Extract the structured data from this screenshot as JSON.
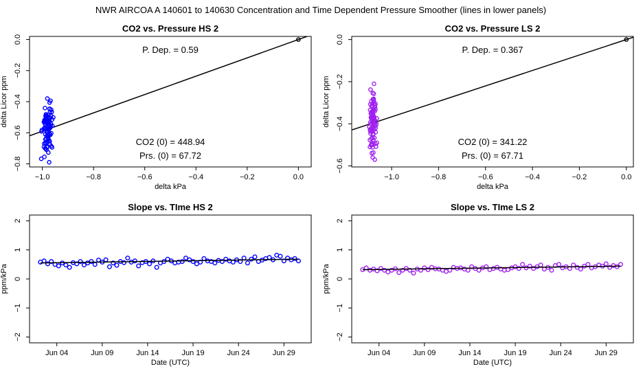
{
  "figure_title": "NWR   AIRCOA A   140601 to 140630   Concentration and Time Dependent Pressure Smoother (lines in lower panels)",
  "colors": {
    "hs": "#0000ff",
    "ls": "#a020f0",
    "line": "#000000"
  },
  "chart_data": [
    {
      "id": "hs-scatter",
      "type": "scatter",
      "title": "CO2 vs. Pressure HS 2",
      "xlabel": "delta kPa",
      "ylabel": "delta Licor ppm",
      "xlim": [
        -1.05,
        0.05
      ],
      "ylim": [
        -0.82,
        0.02
      ],
      "xticks": [
        -1.0,
        -0.8,
        -0.6,
        -0.4,
        -0.2,
        0.0
      ],
      "xtick_labels": [
        "−1.0",
        "−0.8",
        "−0.6",
        "−0.4",
        "−0.2",
        "0.0"
      ],
      "yticks": [
        0.0,
        -0.2,
        -0.4,
        -0.6,
        -0.8
      ],
      "ytick_labels": [
        "0.0",
        "−0.2",
        "−0.4",
        "−0.6",
        "−0.8"
      ],
      "annotations": {
        "pdep": "P. Dep. =  0.59",
        "co2": "CO2 (0) =  448.94",
        "prs": "Prs. (0) =  67.72"
      },
      "fit_line": {
        "slope": 0.59,
        "intercept": 0.0
      },
      "ref_point": [
        0.0,
        0.0
      ],
      "cluster": {
        "x_center": -0.98,
        "x_spread": 0.028,
        "y_min": -0.79,
        "y_max": -0.38,
        "y_mean": -0.58,
        "n": 90
      }
    },
    {
      "id": "ls-scatter",
      "type": "scatter",
      "title": "CO2 vs. Pressure LS 2",
      "xlabel": "delta kPa",
      "ylabel": "delta Licor ppm",
      "xlim": [
        -1.17,
        0.03
      ],
      "ylim": [
        -0.605,
        0.015
      ],
      "xticks": [
        -1.0,
        -0.8,
        -0.6,
        -0.4,
        -0.2,
        0.0
      ],
      "xtick_labels": [
        "−1.0",
        "−0.8",
        "−0.6",
        "−0.4",
        "−0.2",
        "0.0"
      ],
      "yticks": [
        0.0,
        -0.2,
        -0.4,
        -0.6
      ],
      "ytick_labels": [
        "0.0",
        "−0.2",
        "−0.4",
        "−0.6"
      ],
      "annotations": {
        "pdep": "P. Dep. =  0.367",
        "co2": "CO2 (0) =  341.22",
        "prs": "Prs. (0) =  67.71"
      },
      "fit_line": {
        "slope": 0.367,
        "intercept": 0.0
      },
      "ref_point": [
        0.0,
        0.0
      ],
      "cluster": {
        "x_center": -1.08,
        "x_spread": 0.022,
        "y_min": -0.57,
        "y_max": -0.21,
        "y_mean": -0.39,
        "n": 90
      }
    },
    {
      "id": "hs-slope",
      "type": "scatter",
      "title": "Slope vs. TIme HS 2",
      "xlabel": "Date (UTC)",
      "ylabel": "ppm/kPa",
      "xlim": [
        0,
        31
      ],
      "ylim": [
        -2.2,
        2.2
      ],
      "xticks": [
        3,
        8,
        13,
        18,
        23,
        28
      ],
      "xtick_labels": [
        "Jun 04",
        "Jun 09",
        "Jun 14",
        "Jun 19",
        "Jun 24",
        "Jun 29"
      ],
      "yticks": [
        -2,
        -1,
        0,
        1,
        2
      ],
      "ytick_labels": [
        "−2",
        "−1",
        "0",
        "1",
        "2"
      ],
      "x": [
        1.2,
        1.6,
        2.0,
        2.4,
        2.8,
        3.2,
        3.6,
        4.0,
        4.4,
        4.8,
        5.2,
        5.6,
        6.0,
        6.4,
        6.8,
        7.2,
        7.6,
        8.0,
        8.4,
        8.8,
        9.2,
        9.6,
        10.0,
        10.4,
        10.8,
        11.2,
        11.6,
        12.0,
        12.4,
        12.8,
        13.2,
        13.6,
        14.0,
        14.4,
        14.8,
        15.2,
        15.6,
        16.0,
        16.4,
        16.8,
        17.2,
        17.6,
        18.0,
        18.4,
        18.8,
        19.2,
        19.6,
        20.0,
        20.4,
        20.8,
        21.2,
        21.6,
        22.0,
        22.4,
        22.8,
        23.2,
        23.6,
        24.0,
        24.4,
        24.8,
        25.2,
        25.6,
        26.0,
        26.4,
        26.8,
        27.2,
        27.6,
        28.0,
        28.4,
        28.8,
        29.2,
        29.6
      ],
      "y": [
        0.58,
        0.62,
        0.52,
        0.6,
        0.5,
        0.45,
        0.55,
        0.48,
        0.4,
        0.56,
        0.52,
        0.6,
        0.48,
        0.55,
        0.6,
        0.5,
        0.65,
        0.58,
        0.66,
        0.42,
        0.55,
        0.47,
        0.6,
        0.56,
        0.72,
        0.58,
        0.62,
        0.45,
        0.56,
        0.6,
        0.52,
        0.62,
        0.4,
        0.55,
        0.6,
        0.68,
        0.62,
        0.55,
        0.58,
        0.6,
        0.72,
        0.66,
        0.6,
        0.52,
        0.58,
        0.7,
        0.62,
        0.6,
        0.55,
        0.64,
        0.6,
        0.68,
        0.62,
        0.58,
        0.66,
        0.6,
        0.72,
        0.55,
        0.68,
        0.76,
        0.6,
        0.65,
        0.7,
        0.74,
        0.66,
        0.82,
        0.78,
        0.62,
        0.72,
        0.66,
        0.7,
        0.62
      ],
      "smooth": {
        "x": [
          1.2,
          29.6
        ],
        "y": [
          0.55,
          0.68
        ]
      }
    },
    {
      "id": "ls-slope",
      "type": "scatter",
      "title": "Slope vs. TIme LS 2",
      "xlabel": "Date (UTC)",
      "ylabel": "ppm/kPa",
      "xlim": [
        0,
        31
      ],
      "ylim": [
        -2.2,
        2.2
      ],
      "xticks": [
        3,
        8,
        13,
        18,
        23,
        28
      ],
      "xtick_labels": [
        "Jun 04",
        "Jun 09",
        "Jun 14",
        "Jun 19",
        "Jun 24",
        "Jun 29"
      ],
      "yticks": [
        -2,
        -1,
        0,
        1,
        2
      ],
      "ytick_labels": [
        "−2",
        "−1",
        "0",
        "1",
        "2"
      ],
      "x": [
        1.2,
        1.6,
        2.0,
        2.4,
        2.8,
        3.2,
        3.6,
        4.0,
        4.4,
        4.8,
        5.2,
        5.6,
        6.0,
        6.4,
        6.8,
        7.2,
        7.6,
        8.0,
        8.4,
        8.8,
        9.2,
        9.6,
        10.0,
        10.4,
        10.8,
        11.2,
        11.6,
        12.0,
        12.4,
        12.8,
        13.2,
        13.6,
        14.0,
        14.4,
        14.8,
        15.2,
        15.6,
        16.0,
        16.4,
        16.8,
        17.2,
        17.6,
        18.0,
        18.4,
        18.8,
        19.2,
        19.6,
        20.0,
        20.4,
        20.8,
        21.2,
        21.6,
        22.0,
        22.4,
        22.8,
        23.2,
        23.6,
        24.0,
        24.4,
        24.8,
        25.2,
        25.6,
        26.0,
        26.4,
        26.8,
        27.2,
        27.6,
        28.0,
        28.4,
        28.8,
        29.2,
        29.6
      ],
      "y": [
        0.32,
        0.38,
        0.3,
        0.34,
        0.28,
        0.36,
        0.3,
        0.24,
        0.3,
        0.35,
        0.22,
        0.3,
        0.36,
        0.3,
        0.2,
        0.34,
        0.3,
        0.38,
        0.32,
        0.4,
        0.35,
        0.34,
        0.3,
        0.26,
        0.3,
        0.4,
        0.36,
        0.38,
        0.34,
        0.3,
        0.42,
        0.36,
        0.3,
        0.38,
        0.42,
        0.32,
        0.36,
        0.4,
        0.34,
        0.3,
        0.32,
        0.38,
        0.42,
        0.36,
        0.5,
        0.38,
        0.44,
        0.36,
        0.42,
        0.48,
        0.34,
        0.4,
        0.3,
        0.46,
        0.5,
        0.38,
        0.42,
        0.36,
        0.48,
        0.4,
        0.34,
        0.44,
        0.5,
        0.38,
        0.42,
        0.48,
        0.44,
        0.52,
        0.4,
        0.46,
        0.42,
        0.5
      ],
      "smooth": {
        "x": [
          1.2,
          29.6
        ],
        "y": [
          0.32,
          0.44
        ]
      }
    }
  ]
}
